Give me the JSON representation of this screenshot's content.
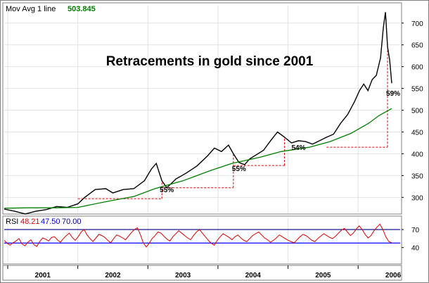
{
  "header": {
    "indicator_label": "Mov Avg 1 line",
    "indicator_value": "503.845",
    "rsi_label": "RSI",
    "rsi_values": [
      "48.21",
      "47.50",
      "70.00"
    ]
  },
  "chart_data": [
    {
      "type": "line",
      "title": "Retracements in gold since 2001",
      "x_tick_labels": [
        "2001",
        "2002",
        "2003",
        "2004",
        "2005",
        "2006"
      ],
      "x_range": [
        2000.95,
        2006.6
      ],
      "ylim": [
        265,
        740
      ],
      "y_ticks": [
        300,
        350,
        400,
        450,
        500,
        550,
        600,
        650,
        700
      ],
      "series": [
        {
          "name": "Price",
          "points": [
            [
              2000.95,
              273
            ],
            [
              2001.1,
              268
            ],
            [
              2001.25,
              262
            ],
            [
              2001.4,
              268
            ],
            [
              2001.55,
              272
            ],
            [
              2001.7,
              279
            ],
            [
              2001.85,
              277
            ],
            [
              2002.0,
              285
            ],
            [
              2002.1,
              300
            ],
            [
              2002.25,
              318
            ],
            [
              2002.4,
              320
            ],
            [
              2002.5,
              310
            ],
            [
              2002.65,
              318
            ],
            [
              2002.8,
              320
            ],
            [
              2002.95,
              338
            ],
            [
              2003.05,
              365
            ],
            [
              2003.12,
              378
            ],
            [
              2003.2,
              338
            ],
            [
              2003.27,
              322
            ],
            [
              2003.4,
              342
            ],
            [
              2003.55,
              356
            ],
            [
              2003.7,
              372
            ],
            [
              2003.85,
              395
            ],
            [
              2003.95,
              413
            ],
            [
              2004.05,
              405
            ],
            [
              2004.15,
              420
            ],
            [
              2004.22,
              400
            ],
            [
              2004.3,
              380
            ],
            [
              2004.38,
              375
            ],
            [
              2004.45,
              388
            ],
            [
              2004.55,
              398
            ],
            [
              2004.65,
              408
            ],
            [
              2004.75,
              430
            ],
            [
              2004.85,
              450
            ],
            [
              2004.95,
              438
            ],
            [
              2005.05,
              425
            ],
            [
              2005.15,
              430
            ],
            [
              2005.25,
              428
            ],
            [
              2005.35,
              422
            ],
            [
              2005.45,
              430
            ],
            [
              2005.55,
              438
            ],
            [
              2005.65,
              445
            ],
            [
              2005.75,
              470
            ],
            [
              2005.85,
              490
            ],
            [
              2005.95,
              520
            ],
            [
              2006.02,
              545
            ],
            [
              2006.08,
              560
            ],
            [
              2006.14,
              545
            ],
            [
              2006.2,
              570
            ],
            [
              2006.26,
              580
            ],
            [
              2006.32,
              620
            ],
            [
              2006.36,
              690
            ],
            [
              2006.39,
              725
            ],
            [
              2006.42,
              645
            ],
            [
              2006.45,
              615
            ],
            [
              2006.48,
              562
            ]
          ]
        },
        {
          "name": "Mov Avg",
          "points": [
            [
              2000.95,
              275
            ],
            [
              2001.3,
              276
            ],
            [
              2001.7,
              276
            ],
            [
              2002.0,
              277
            ],
            [
              2002.4,
              290
            ],
            [
              2002.8,
              302
            ],
            [
              2003.1,
              320
            ],
            [
              2003.5,
              338
            ],
            [
              2003.9,
              362
            ],
            [
              2004.2,
              378
            ],
            [
              2004.6,
              392
            ],
            [
              2004.9,
              405
            ],
            [
              2005.3,
              415
            ],
            [
              2005.6,
              428
            ],
            [
              2005.9,
              447
            ],
            [
              2006.15,
              470
            ],
            [
              2006.3,
              488
            ],
            [
              2006.48,
              503.845
            ]
          ]
        }
      ],
      "annotations": [
        {
          "text": "55%",
          "x": 2003.27,
          "y": 318
        },
        {
          "text": "55%",
          "x": 2004.3,
          "y": 367
        },
        {
          "text": "54%",
          "x": 2005.15,
          "y": 415
        },
        {
          "text": "59%",
          "x": 2006.5,
          "y": 540
        }
      ],
      "retracement_levels": [
        {
          "y": 297,
          "x_from": 2002.0,
          "x_to": 2003.2
        },
        {
          "y": 322,
          "x_from": 2003.2,
          "x_to": 2004.22
        },
        {
          "y": 373,
          "x_from": 2004.22,
          "x_to": 2004.95
        },
        {
          "y": 415,
          "x_from": 2005.55,
          "x_to": 2006.42
        }
      ],
      "colors": {
        "price": "#000000",
        "mov_avg": "#007f00",
        "levels": "#e00000"
      }
    },
    {
      "type": "line",
      "y_ticks": [
        40,
        70
      ],
      "reference_lines": [
        47.5,
        70.0
      ],
      "series": [
        {
          "name": "RSI",
          "values": [
            52,
            47,
            44,
            48,
            51,
            55,
            46,
            43,
            49,
            53,
            45,
            42,
            50,
            56,
            54,
            51,
            57,
            58,
            53,
            49,
            55,
            60,
            64,
            57,
            52,
            58,
            66,
            70,
            61,
            55,
            50,
            56,
            62,
            60,
            57,
            52,
            48,
            55,
            61,
            59,
            56,
            53,
            59,
            65,
            70,
            73,
            62,
            48,
            41,
            47,
            55,
            60,
            66,
            64,
            59,
            54,
            51,
            58,
            63,
            68,
            64,
            60,
            56,
            53,
            60,
            66,
            70,
            64,
            58,
            52,
            47,
            44,
            52,
            58,
            63,
            60,
            57,
            53,
            58,
            61,
            56,
            52,
            50,
            55,
            60,
            63,
            66,
            61,
            56,
            53,
            49,
            52,
            56,
            61,
            58,
            55,
            52,
            50,
            48,
            53,
            58,
            62,
            60,
            56,
            52,
            50,
            55,
            59,
            63,
            60,
            57,
            55,
            59,
            64,
            69,
            72,
            66,
            60,
            64,
            71,
            76,
            70,
            62,
            56,
            60,
            68,
            74,
            79,
            70,
            58,
            50,
            48
          ]
        }
      ],
      "colors": {
        "rsi": "#e00000",
        "ref_upper": "#000080",
        "ref_lower": "#0000ff"
      }
    }
  ]
}
